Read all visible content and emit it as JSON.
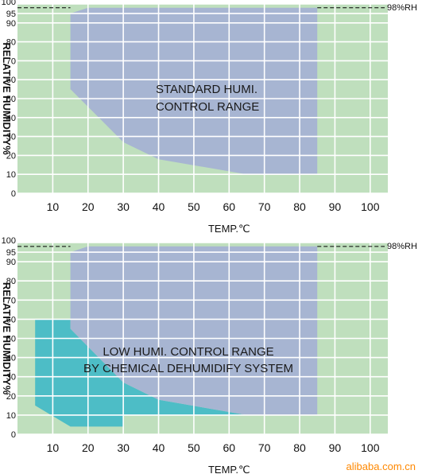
{
  "colors": {
    "background": "#bfdfbd",
    "standard_region": "#a7b5d2",
    "low_region": "#4dbdc6",
    "grid": "#ffffff",
    "dashed": "#000000",
    "watermark": "#ff8800"
  },
  "watermark": "alibaba.com.cn",
  "chart_data": [
    {
      "type": "area",
      "ylabel": "RELATIVE HUMIDITY%",
      "xlabel": "TEMP.℃",
      "x_ticks": [
        "10",
        "20",
        "30",
        "40",
        "50",
        "60",
        "70",
        "80",
        "90",
        "100"
      ],
      "y_ticks": [
        "0",
        "10",
        "20",
        "30",
        "40",
        "50",
        "60",
        "70",
        "80",
        "90",
        "95",
        "100"
      ],
      "xlim": [
        0,
        105
      ],
      "ylim": [
        0,
        100
      ],
      "reference_line": {
        "y": 98,
        "label": "98%RH"
      },
      "regions": [
        {
          "name": "STANDARD HUMI. CONTROL RANGE",
          "label_lines": [
            "STANDARD HUMI.",
            "CONTROL RANGE"
          ],
          "color": "standard_region",
          "points": [
            [
              15,
              95
            ],
            [
              20,
              98
            ],
            [
              85,
              98
            ],
            [
              85,
              10
            ],
            [
              65,
              10
            ],
            [
              40,
              18
            ],
            [
              30,
              27
            ],
            [
              15,
              55
            ]
          ]
        }
      ]
    },
    {
      "type": "area",
      "ylabel": "RELATIVE HUMIDITY%",
      "xlabel": "TEMP.℃",
      "x_ticks": [
        "10",
        "20",
        "30",
        "40",
        "50",
        "60",
        "70",
        "80",
        "90",
        "100"
      ],
      "y_ticks": [
        "0",
        "10",
        "20",
        "30",
        "40",
        "50",
        "60",
        "70",
        "80",
        "90",
        "95",
        "100"
      ],
      "xlim": [
        0,
        105
      ],
      "ylim": [
        0,
        100
      ],
      "reference_line": {
        "y": 98,
        "label": "98%RH"
      },
      "label_lines": [
        "LOW HUMI. CONTROL RANGE",
        "BY CHEMICAL DEHUMIDIFY SYSTEM"
      ],
      "regions": [
        {
          "color": "low_region",
          "points": [
            [
              5,
              60
            ],
            [
              15,
              60
            ],
            [
              15,
              55
            ],
            [
              30,
              27
            ],
            [
              40,
              18
            ],
            [
              65,
              10
            ],
            [
              85,
              10
            ],
            [
              30,
              10
            ],
            [
              30,
              4
            ],
            [
              15,
              4
            ],
            [
              5,
              15
            ]
          ]
        },
        {
          "color": "standard_region",
          "points": [
            [
              15,
              95
            ],
            [
              20,
              98
            ],
            [
              85,
              98
            ],
            [
              85,
              10
            ],
            [
              65,
              10
            ],
            [
              40,
              18
            ],
            [
              30,
              27
            ],
            [
              15,
              55
            ]
          ]
        }
      ]
    }
  ]
}
